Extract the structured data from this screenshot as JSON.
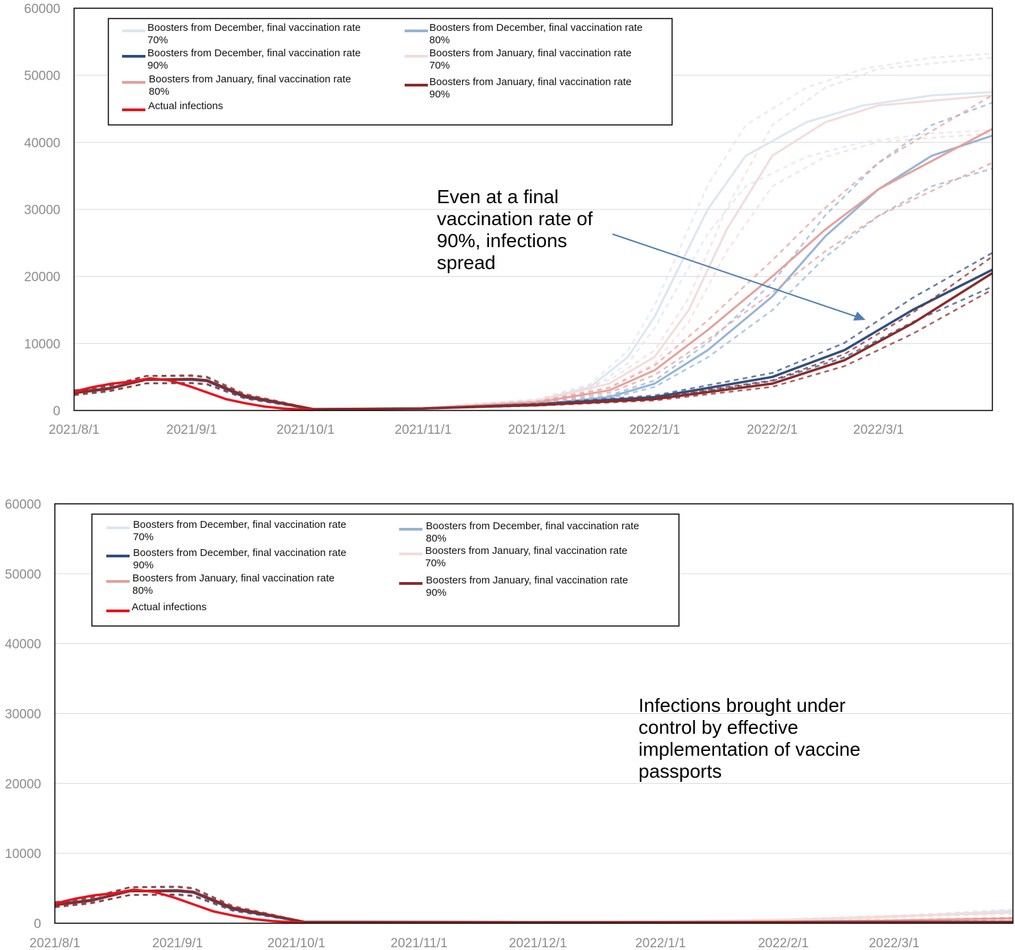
{
  "colors": {
    "dec70": "#dce6f2",
    "dec80": "#95b3d7",
    "dec90": "#2f4f7f",
    "jan70": "#f2dcdb",
    "jan80": "#e6a09c",
    "jan90": "#8b2a2a",
    "actual": "#e8141c",
    "arrow": "#4f7fb0",
    "grid": "#d9d9d9"
  },
  "chart_data": [
    {
      "type": "line",
      "annotation": [
        "Even at a final",
        "vaccination rate of",
        "90%, infections",
        "spread"
      ],
      "y_ticks": [
        "0",
        "10000",
        "20000",
        "30000",
        "40000",
        "50000",
        "60000"
      ],
      "x_ticks": [
        "2021/8/1",
        "2021/9/1",
        "2021/10/1",
        "2021/11/1",
        "2021/12/1",
        "2022/1/1",
        "2022/2/1",
        "2022/3/1"
      ],
      "ylim": [
        0,
        60000
      ],
      "xlim": [
        "2021-08-01",
        "2022-03-31"
      ],
      "grid": true,
      "legend_position": "top-left",
      "legend": [
        {
          "key": "dec70",
          "text": [
            "Boosters from December, final vaccination rate",
            "70%"
          ]
        },
        {
          "key": "dec80",
          "text": [
            "Boosters from December, final vaccination rate",
            "80%"
          ]
        },
        {
          "key": "dec90",
          "text": [
            "Boosters from December, final vaccination rate",
            "90%"
          ]
        },
        {
          "key": "jan70",
          "text": [
            "Boosters from January, final vaccination rate",
            "70%"
          ]
        },
        {
          "key": "jan80",
          "text": [
            "Boosters from January, final vaccination rate",
            "80%"
          ]
        },
        {
          "key": "jan90",
          "text": [
            "Boosters from January, final vaccination rate",
            "90%"
          ]
        },
        {
          "key": "actual",
          "text": [
            "Actual infections"
          ]
        }
      ],
      "series": [
        {
          "name": "Actual infections",
          "key": "actual",
          "x": [
            "2021-08-01",
            "2021-08-06",
            "2021-08-11",
            "2021-08-16",
            "2021-08-21",
            "2021-08-26",
            "2021-08-31",
            "2021-09-05",
            "2021-09-10",
            "2021-09-15",
            "2021-09-20",
            "2021-09-25",
            "2021-09-30",
            "2021-10-03"
          ],
          "y": [
            2800,
            3500,
            4000,
            4300,
            4800,
            4500,
            3700,
            2700,
            1700,
            1100,
            600,
            300,
            150,
            100
          ]
        },
        {
          "name": "Boosters from December, final vaccination rate 70%",
          "key": "dec70",
          "x": [
            "2021-10-03",
            "2021-11-01",
            "2021-12-01",
            "2021-12-15",
            "2021-12-25",
            "2022-01-01",
            "2022-01-08",
            "2022-01-15",
            "2022-01-25",
            "2022-02-10",
            "2022-02-25",
            "2022-03-15",
            "2022-03-31"
          ],
          "y": [
            100,
            400,
            1500,
            3500,
            8000,
            14000,
            22000,
            30000,
            38000,
            43000,
            45500,
            47000,
            47500
          ]
        },
        {
          "name": "Boosters from December, final vaccination rate 80%",
          "key": "dec80",
          "x": [
            "2021-10-03",
            "2021-11-01",
            "2021-12-01",
            "2021-12-20",
            "2022-01-01",
            "2022-01-15",
            "2022-02-01",
            "2022-02-15",
            "2022-03-01",
            "2022-03-15",
            "2022-03-31"
          ],
          "y": [
            100,
            300,
            900,
            2000,
            4000,
            9000,
            17000,
            26000,
            33000,
            38000,
            41000
          ]
        },
        {
          "name": "Boosters from December, final vaccination rate 90%",
          "key": "dec90",
          "x": [
            "2021-08-01",
            "2021-08-10",
            "2021-08-20",
            "2021-09-01",
            "2021-09-05",
            "2021-09-15",
            "2021-09-25",
            "2021-10-03",
            "2021-11-01",
            "2021-12-01",
            "2022-01-01",
            "2022-02-01",
            "2022-02-20",
            "2022-03-10",
            "2022-03-31"
          ],
          "y": [
            2700,
            3300,
            4600,
            4600,
            4400,
            2000,
            1000,
            150,
            300,
            900,
            2000,
            5000,
            9000,
            15000,
            21000
          ]
        },
        {
          "name": "Boosters from January, final vaccination rate 70%",
          "key": "jan70",
          "x": [
            "2021-10-03",
            "2021-11-01",
            "2021-12-01",
            "2021-12-20",
            "2022-01-01",
            "2022-01-10",
            "2022-01-20",
            "2022-02-01",
            "2022-02-15",
            "2022-03-01",
            "2022-03-31"
          ],
          "y": [
            100,
            400,
            1400,
            4000,
            8000,
            15000,
            27000,
            38000,
            43000,
            45500,
            47000
          ]
        },
        {
          "name": "Boosters from January, final vaccination rate 80%",
          "key": "jan80",
          "x": [
            "2021-10-03",
            "2021-11-01",
            "2021-12-01",
            "2021-12-20",
            "2022-01-01",
            "2022-01-15",
            "2022-02-01",
            "2022-02-15",
            "2022-03-01",
            "2022-03-31"
          ],
          "y": [
            100,
            300,
            1200,
            3000,
            6000,
            12000,
            20000,
            27000,
            33000,
            42000
          ]
        },
        {
          "name": "Boosters from January, final vaccination rate 90%",
          "key": "jan90",
          "x": [
            "2021-08-01",
            "2021-08-10",
            "2021-08-20",
            "2021-09-01",
            "2021-09-05",
            "2021-09-15",
            "2021-09-25",
            "2021-10-03",
            "2021-11-01",
            "2021-12-01",
            "2022-01-01",
            "2022-02-01",
            "2022-02-20",
            "2022-03-10",
            "2022-03-31"
          ],
          "y": [
            2600,
            3200,
            4600,
            4700,
            4500,
            2200,
            1100,
            200,
            300,
            800,
            1700,
            4000,
            7500,
            13000,
            20500
          ]
        }
      ]
    },
    {
      "type": "line",
      "annotation": [
        "Infections brought under",
        "control by effective",
        "implementation of vaccine",
        "passports"
      ],
      "y_ticks": [
        "0",
        "10000",
        "20000",
        "30000",
        "40000",
        "50000",
        "60000"
      ],
      "x_ticks": [
        "2021/8/1",
        "2021/9/1",
        "2021/10/1",
        "2021/11/1",
        "2021/12/1",
        "2022/1/1",
        "2022/2/1",
        "2022/3/1"
      ],
      "ylim": [
        0,
        60000
      ],
      "xlim": [
        "2021-08-01",
        "2022-03-31"
      ],
      "grid": true,
      "legend_position": "top-left",
      "legend": [
        {
          "key": "dec70",
          "text": [
            "Boosters from December, final vaccination rate",
            "70%"
          ]
        },
        {
          "key": "dec80",
          "text": [
            "Boosters from December, final vaccination rate",
            "80%"
          ]
        },
        {
          "key": "dec90",
          "text": [
            "Boosters from December, final vaccination rate",
            "90%"
          ]
        },
        {
          "key": "jan70",
          "text": [
            "Boosters from January, final vaccination rate",
            "70%"
          ]
        },
        {
          "key": "jan80",
          "text": [
            "Boosters from January, final vaccination rate",
            "80%"
          ]
        },
        {
          "key": "jan90",
          "text": [
            "Boosters from January, final vaccination rate",
            "90%"
          ]
        },
        {
          "key": "actual",
          "text": [
            "Actual infections"
          ]
        }
      ],
      "series": [
        {
          "name": "Actual infections",
          "key": "actual",
          "x": [
            "2021-08-01",
            "2021-08-06",
            "2021-08-11",
            "2021-08-16",
            "2021-08-21",
            "2021-08-26",
            "2021-08-31",
            "2021-09-05",
            "2021-09-10",
            "2021-09-15",
            "2021-09-20",
            "2021-09-25",
            "2021-09-30",
            "2021-10-03"
          ],
          "y": [
            2800,
            3500,
            4000,
            4300,
            4800,
            4500,
            3700,
            2700,
            1700,
            1100,
            600,
            300,
            150,
            100
          ]
        },
        {
          "name": "Boosters from December, final vaccination rate 70%",
          "key": "dec70",
          "x": [
            "2021-10-03",
            "2021-12-01",
            "2022-01-01",
            "2022-02-01",
            "2022-03-01",
            "2022-03-31"
          ],
          "y": [
            100,
            150,
            200,
            400,
            900,
            1800
          ]
        },
        {
          "name": "Boosters from December, final vaccination rate 80%",
          "key": "dec80",
          "x": [
            "2021-10-03",
            "2021-12-01",
            "2022-01-01",
            "2022-02-01",
            "2022-03-01",
            "2022-03-31"
          ],
          "y": [
            100,
            120,
            150,
            200,
            350,
            700
          ]
        },
        {
          "name": "Boosters from December, final vaccination rate 90%",
          "key": "dec90",
          "x": [
            "2021-08-01",
            "2021-08-10",
            "2021-08-20",
            "2021-09-01",
            "2021-09-05",
            "2021-09-15",
            "2021-09-25",
            "2021-10-03",
            "2021-12-01",
            "2022-01-01",
            "2022-02-01",
            "2022-03-31"
          ],
          "y": [
            2700,
            3300,
            4600,
            4600,
            4400,
            2000,
            1000,
            150,
            120,
            120,
            120,
            150
          ]
        },
        {
          "name": "Boosters from January, final vaccination rate 70%",
          "key": "jan70",
          "x": [
            "2021-10-03",
            "2021-12-01",
            "2022-01-01",
            "2022-02-01",
            "2022-03-01",
            "2022-03-31"
          ],
          "y": [
            100,
            150,
            250,
            500,
            1000,
            1500
          ]
        },
        {
          "name": "Boosters from January, final vaccination rate 80%",
          "key": "jan80",
          "x": [
            "2021-10-03",
            "2021-12-01",
            "2022-01-01",
            "2022-02-01",
            "2022-03-01",
            "2022-03-31"
          ],
          "y": [
            100,
            120,
            150,
            250,
            400,
            700
          ]
        },
        {
          "name": "Boosters from January, final vaccination rate 90%",
          "key": "jan90",
          "x": [
            "2021-08-01",
            "2021-08-10",
            "2021-08-20",
            "2021-09-01",
            "2021-09-05",
            "2021-09-15",
            "2021-09-25",
            "2021-10-03",
            "2021-12-01",
            "2022-01-01",
            "2022-02-01",
            "2022-03-31"
          ],
          "y": [
            2600,
            3200,
            4600,
            4700,
            4500,
            2200,
            1100,
            200,
            150,
            150,
            150,
            200
          ]
        }
      ]
    }
  ]
}
